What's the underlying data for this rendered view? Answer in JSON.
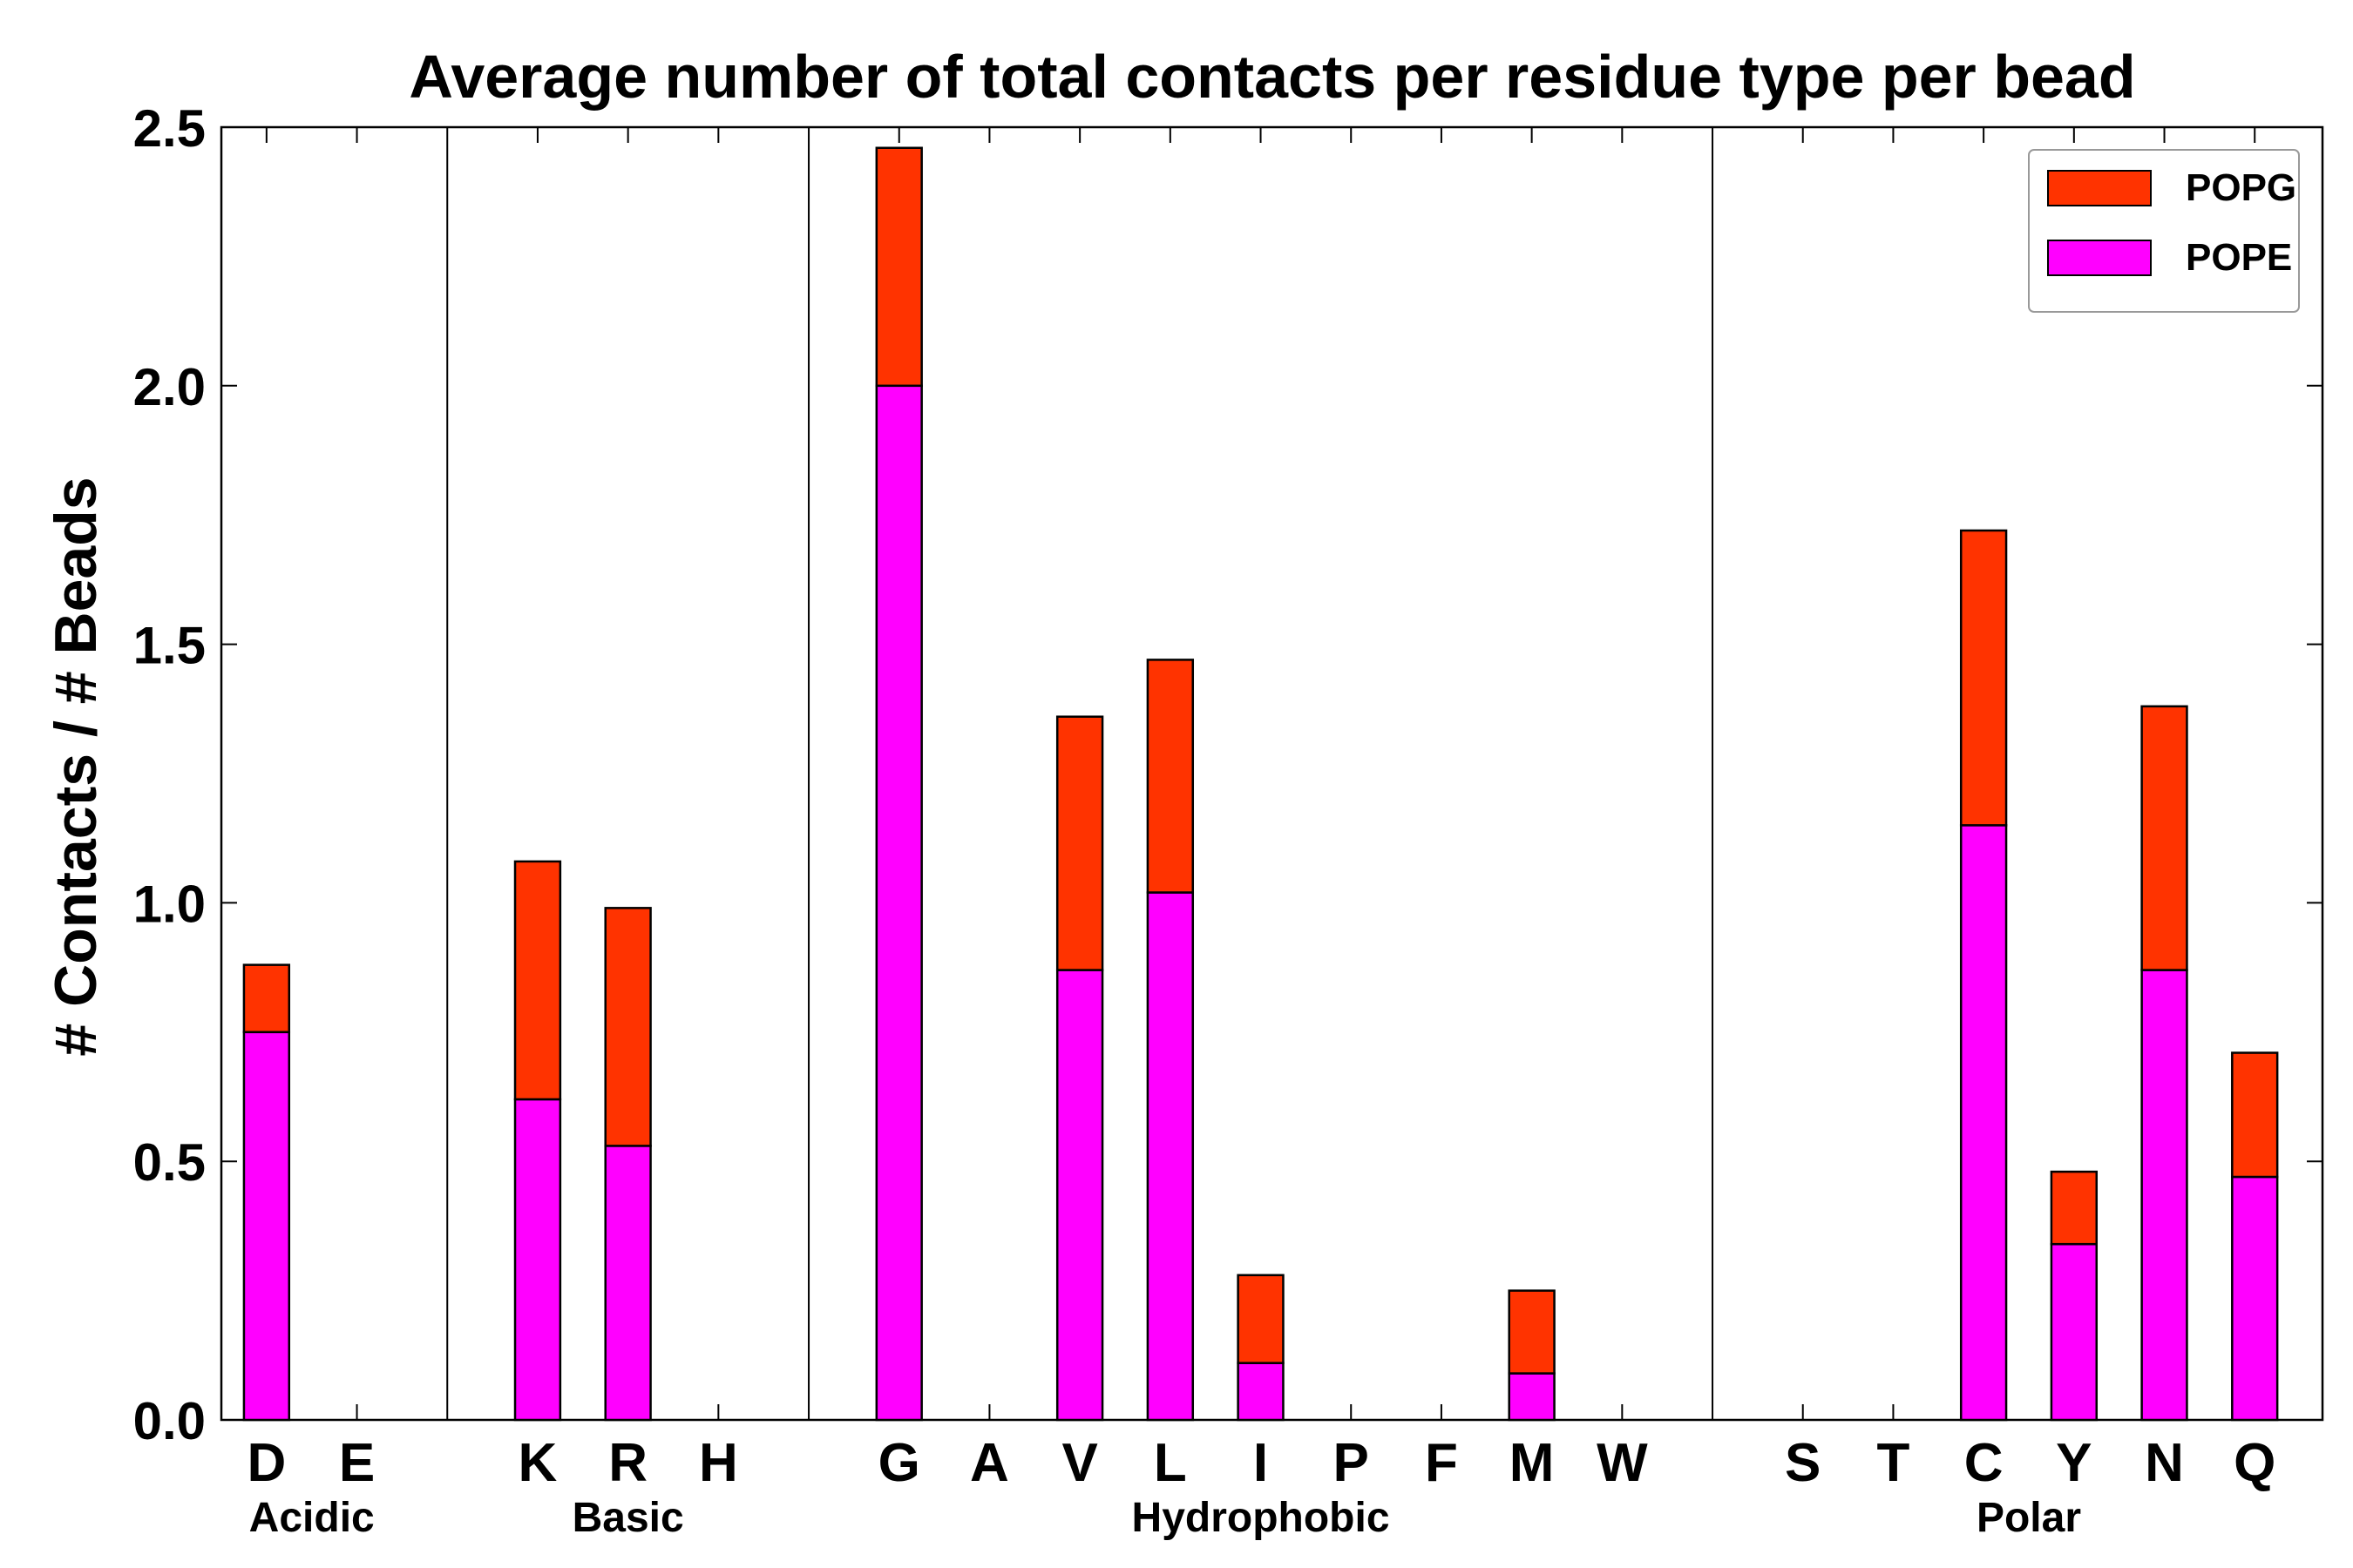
{
  "chart_data": {
    "type": "bar",
    "stacked": true,
    "title": "Average number of total contacts per residue type per bead",
    "xlabel": "",
    "ylabel": "# Contacts / # Beads",
    "ylim": [
      0,
      2.5
    ],
    "yticks": [
      "0.0",
      "0.5",
      "1.0",
      "1.5",
      "2.0",
      "2.5"
    ],
    "categories": [
      "D",
      "E",
      "",
      "K",
      "R",
      "H",
      "",
      "G",
      "A",
      "V",
      "L",
      "I",
      "P",
      "F",
      "M",
      "W",
      "",
      "S",
      "T",
      "C",
      "Y",
      "N",
      "Q"
    ],
    "series": [
      {
        "name": "POPE",
        "color": "#ff00ff",
        "values": [
          0.75,
          0,
          0,
          0.62,
          0.53,
          0,
          0,
          2.0,
          0,
          0.87,
          1.02,
          0.11,
          0,
          0,
          0.09,
          0,
          0,
          0,
          0,
          1.15,
          0.34,
          0.87,
          0.47
        ]
      },
      {
        "name": "POPG",
        "color": "#ff3300",
        "values": [
          0.13,
          0,
          0,
          0.46,
          0.46,
          0,
          0,
          0.46,
          0,
          0.49,
          0.45,
          0.17,
          0,
          0,
          0.16,
          0,
          0,
          0,
          0,
          0.57,
          0.14,
          0.51,
          0.24
        ]
      }
    ],
    "groups": [
      {
        "label": "Acidic",
        "start": 0,
        "end": 1
      },
      {
        "label": "Basic",
        "start": 3,
        "end": 5
      },
      {
        "label": "Hydrophobic",
        "start": 7,
        "end": 15
      },
      {
        "label": "Polar",
        "start": 17,
        "end": 22
      }
    ],
    "group_separators_after": [
      2,
      6,
      16
    ],
    "legend": {
      "position": "top-right",
      "entries": [
        "POPG",
        "POPE"
      ]
    }
  }
}
